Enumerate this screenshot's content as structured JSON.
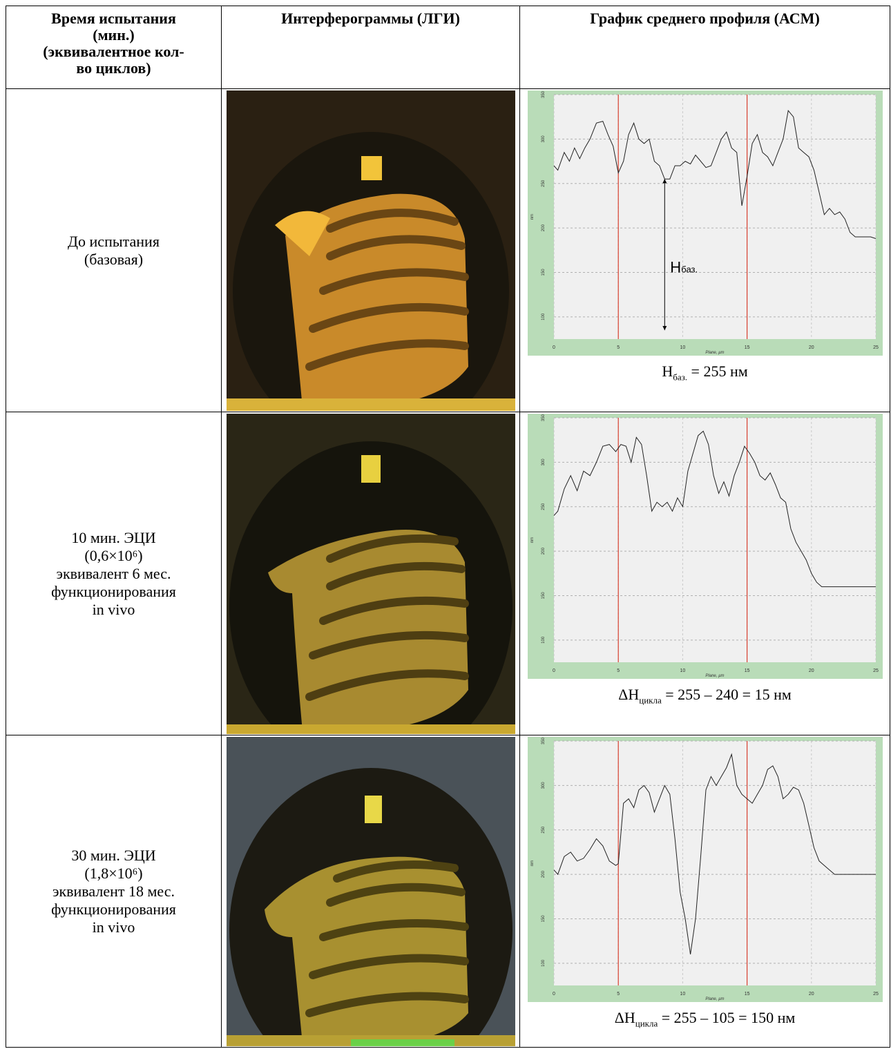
{
  "header": {
    "col1_lines": [
      "Время испытания",
      "(мин.)",
      "(эквивалентное кол-",
      "во циклов)"
    ],
    "col2": "Интерферограммы (ЛГИ)",
    "col3": "График среднего профиля (АСМ)"
  },
  "rows": [
    {
      "label_lines": [
        "До испытания",
        "(базовая)"
      ],
      "caption_main": "H",
      "caption_sub": "баз.",
      "caption_rest": " = 255 нм",
      "annotation_main": "H",
      "annotation_sub": "баз."
    },
    {
      "label_lines": [
        "10 мин. ЭЦИ",
        "(0,6×10⁶)",
        "эквивалент 6 мес.",
        "функционирования",
        "in vivo"
      ],
      "caption_main": "ΔH",
      "caption_sub": "цикла",
      "caption_rest": " = 255 – 240 = 15 нм"
    },
    {
      "label_lines": [
        "30 мин. ЭЦИ",
        "(1,8×10⁶)",
        "эквивалент 18 мес.",
        "функционирования",
        "in vivo"
      ],
      "caption_main": "ΔH",
      "caption_sub": "цикла",
      "caption_rest": " = 255 – 105 = 150 нм"
    }
  ],
  "chart_axis": {
    "x_ticks": [
      "0",
      "5",
      "10",
      "15",
      "20",
      "25"
    ],
    "x_label": "Plane, µm",
    "y_label": "nm"
  },
  "chart_data": [
    {
      "type": "line",
      "xlim": [
        0,
        25
      ],
      "ylim": [
        75,
        350
      ],
      "y_ticks": [
        "350",
        "300",
        "250",
        "200",
        "150",
        "100"
      ],
      "x": [
        0,
        0.3,
        0.8,
        1.2,
        1.6,
        2.0,
        2.4,
        2.8,
        3.3,
        3.8,
        4.2,
        4.6,
        5.0,
        5.4,
        5.8,
        6.2,
        6.6,
        7.0,
        7.4,
        7.8,
        8.2,
        8.6,
        9.0,
        9.4,
        9.8,
        10.2,
        10.6,
        11.0,
        11.4,
        11.8,
        12.2,
        12.6,
        13.0,
        13.4,
        13.8,
        14.2,
        14.6,
        15.0,
        15.4,
        15.8,
        16.2,
        16.6,
        17.0,
        17.4,
        17.8,
        18.2,
        18.6,
        19.0,
        19.4,
        19.8,
        20.2,
        20.6,
        21.0,
        21.4,
        21.8,
        22.2,
        22.6,
        23.0,
        23.4,
        23.8,
        24.2,
        24.6,
        25.0
      ],
      "y": [
        270,
        265,
        285,
        275,
        290,
        278,
        290,
        300,
        318,
        320,
        305,
        292,
        262,
        275,
        305,
        318,
        300,
        295,
        300,
        275,
        270,
        255,
        255,
        270,
        270,
        275,
        272,
        282,
        275,
        268,
        270,
        285,
        300,
        308,
        290,
        285,
        225,
        258,
        295,
        305,
        285,
        280,
        270,
        285,
        300,
        332,
        325,
        290,
        285,
        280,
        265,
        240,
        215,
        222,
        215,
        218,
        210,
        195,
        190,
        190,
        190,
        190,
        188
      ],
      "vlines": [
        5,
        15
      ]
    },
    {
      "type": "line",
      "xlim": [
        0,
        25
      ],
      "ylim": [
        75,
        350
      ],
      "y_ticks": [
        "350",
        "300",
        "250",
        "200",
        "150",
        "100"
      ],
      "x": [
        0,
        0.3,
        0.8,
        1.3,
        1.8,
        2.3,
        2.8,
        3.3,
        3.8,
        4.3,
        4.8,
        5.2,
        5.6,
        6.0,
        6.4,
        6.8,
        7.2,
        7.6,
        8.0,
        8.4,
        8.8,
        9.2,
        9.6,
        10.0,
        10.4,
        10.8,
        11.2,
        11.6,
        12.0,
        12.4,
        12.8,
        13.2,
        13.6,
        14.0,
        14.4,
        14.8,
        15.2,
        15.6,
        16.0,
        16.4,
        16.8,
        17.2,
        17.6,
        18.0,
        18.4,
        18.8,
        19.2,
        19.6,
        20.0,
        20.4,
        20.8,
        21.2,
        21.6,
        22.0,
        22.4,
        22.8,
        23.2,
        23.6,
        24.0,
        24.4,
        24.8,
        25.0
      ],
      "y": [
        240,
        245,
        270,
        285,
        268,
        290,
        285,
        300,
        318,
        320,
        312,
        320,
        318,
        300,
        328,
        320,
        285,
        245,
        255,
        250,
        255,
        245,
        260,
        250,
        290,
        310,
        330,
        335,
        320,
        285,
        265,
        278,
        262,
        285,
        300,
        318,
        310,
        300,
        285,
        280,
        288,
        275,
        260,
        255,
        225,
        210,
        200,
        190,
        175,
        165,
        160,
        160,
        160,
        160,
        160,
        160,
        160,
        160,
        160,
        160,
        160,
        160
      ],
      "vlines": [
        5,
        15
      ]
    },
    {
      "type": "line",
      "xlim": [
        0,
        25
      ],
      "ylim": [
        75,
        350
      ],
      "y_ticks": [
        "350",
        "300",
        "250",
        "200",
        "150",
        "100"
      ],
      "x": [
        0,
        0.3,
        0.8,
        1.3,
        1.8,
        2.3,
        2.8,
        3.3,
        3.8,
        4.3,
        4.8,
        5.0,
        5.4,
        5.8,
        6.2,
        6.6,
        7.0,
        7.4,
        7.8,
        8.2,
        8.6,
        9.0,
        9.4,
        9.8,
        10.2,
        10.6,
        11.0,
        11.4,
        11.8,
        12.2,
        12.6,
        13.0,
        13.4,
        13.8,
        14.2,
        14.6,
        15.0,
        15.4,
        15.8,
        16.2,
        16.6,
        17.0,
        17.4,
        17.8,
        18.2,
        18.6,
        19.0,
        19.4,
        19.8,
        20.2,
        20.6,
        21.0,
        21.4,
        21.8,
        22.2,
        22.6,
        23.0,
        23.4,
        23.8,
        24.2,
        24.6,
        25.0
      ],
      "y": [
        205,
        200,
        220,
        225,
        215,
        218,
        228,
        240,
        232,
        215,
        210,
        212,
        280,
        285,
        275,
        295,
        300,
        292,
        270,
        285,
        300,
        290,
        240,
        180,
        150,
        110,
        150,
        220,
        295,
        310,
        300,
        310,
        320,
        335,
        300,
        290,
        285,
        280,
        290,
        300,
        318,
        322,
        310,
        285,
        290,
        298,
        295,
        280,
        255,
        230,
        215,
        210,
        205,
        200,
        200,
        200,
        200,
        200,
        200,
        200,
        200,
        200
      ],
      "vlines": [
        5,
        15
      ]
    }
  ]
}
